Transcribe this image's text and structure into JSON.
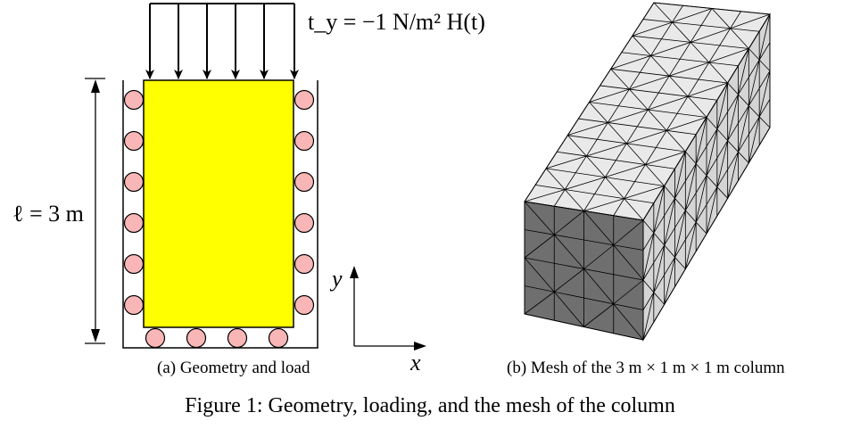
{
  "figure": {
    "caption": "Figure 1: Geometry, loading, and the mesh of the column",
    "subfigures": [
      {
        "id": "a",
        "caption": "(a)  Geometry and load"
      },
      {
        "id": "b",
        "caption": "(b)  Mesh of the 3 m × 1 m × 1 m column"
      }
    ]
  },
  "geometry": {
    "length_label": "ℓ = 3 m",
    "load_label": "t_y = −1 N/m² H(t)",
    "axis_x": "x",
    "axis_y": "y",
    "fill_color": "#ffff00",
    "roller_color": "#f9b6b6"
  },
  "mesh": {
    "face_top_color": "#e9e9e9",
    "face_side_color": "#d5d5d5",
    "face_front_color": "#6f6f6f"
  }
}
